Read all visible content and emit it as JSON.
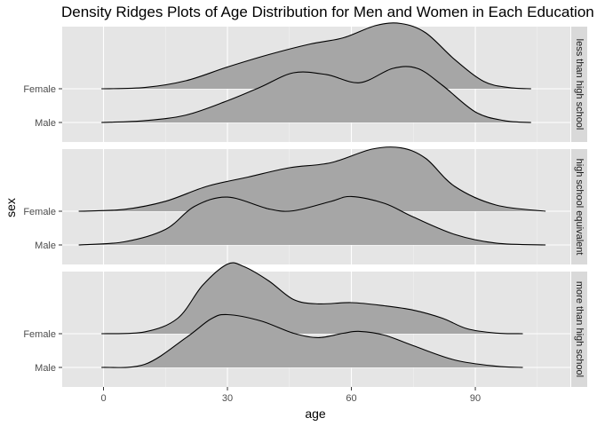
{
  "chart_data": {
    "type": "density_ridges",
    "title": "Density Ridges Plots of Age Distribution for Men and Women in Each Education",
    "xlabel": "age",
    "ylabel": "sex",
    "xlim": [
      -10,
      113
    ],
    "x_ticks": [
      0,
      30,
      60,
      90
    ],
    "x_tick_labels": [
      "0",
      "30",
      "60",
      "90"
    ],
    "y_categories": [
      "Female",
      "Male"
    ],
    "fill_color": "#a6a6a6",
    "line_color": "#000000",
    "panel_background": "#e5e5e5",
    "strip_background": "#d9d9d9",
    "grid": true,
    "facets": [
      {
        "label": "less than high school",
        "ridges": [
          {
            "category": "Male",
            "x": [
              -0.5,
              10,
              20,
              30,
              38,
              46,
              54,
              62,
              70,
              76,
              82,
              90,
              97,
              103.5
            ],
            "y": [
              0,
              0.03,
              0.12,
              0.35,
              0.57,
              0.8,
              0.77,
              0.64,
              0.87,
              0.87,
              0.6,
              0.17,
              0.03,
              0
            ]
          },
          {
            "category": "Female",
            "x": [
              -0.5,
              10,
              20,
              30,
              40,
              50,
              58,
              66,
              72,
              78,
              85,
              92,
              98,
              103.5
            ],
            "y": [
              0,
              0.02,
              0.13,
              0.35,
              0.55,
              0.72,
              0.82,
              1.02,
              1.05,
              0.9,
              0.47,
              0.12,
              0.02,
              0
            ]
          }
        ]
      },
      {
        "label": "high school equivalent",
        "ridges": [
          {
            "category": "Male",
            "x": [
              -6,
              5,
              15,
              22,
              30,
              40,
              46,
              55,
              60,
              68,
              75,
              85,
              95,
              107
            ],
            "y": [
              0,
              0.05,
              0.25,
              0.62,
              0.77,
              0.58,
              0.55,
              0.7,
              0.78,
              0.67,
              0.45,
              0.17,
              0.03,
              0
            ]
          },
          {
            "category": "Female",
            "x": [
              -6,
              5,
              15,
              25,
              35,
              45,
              55,
              65,
              72,
              78,
              85,
              95,
              107
            ],
            "y": [
              0,
              0.03,
              0.16,
              0.4,
              0.55,
              0.7,
              0.78,
              1.0,
              1.02,
              0.85,
              0.4,
              0.1,
              0
            ]
          }
        ]
      },
      {
        "label": "more than high school",
        "ridges": [
          {
            "category": "Male",
            "x": [
              -0.5,
              10,
              20,
              26,
              30,
              38,
              46,
              52,
              58,
              62,
              68,
              75,
              85,
              95,
              101.5
            ],
            "y": [
              0,
              0.05,
              0.48,
              0.78,
              0.85,
              0.75,
              0.55,
              0.48,
              0.55,
              0.58,
              0.52,
              0.35,
              0.12,
              0.02,
              0
            ]
          },
          {
            "category": "Female",
            "x": [
              -0.5,
              10,
              18,
              24,
              30,
              34,
              40,
              46,
              52,
              60,
              68,
              75,
              82,
              88,
              95,
              101.5
            ],
            "y": [
              0,
              0.03,
              0.25,
              0.78,
              1.12,
              1.08,
              0.85,
              0.55,
              0.48,
              0.5,
              0.45,
              0.38,
              0.25,
              0.08,
              0.01,
              0
            ]
          }
        ]
      }
    ]
  }
}
